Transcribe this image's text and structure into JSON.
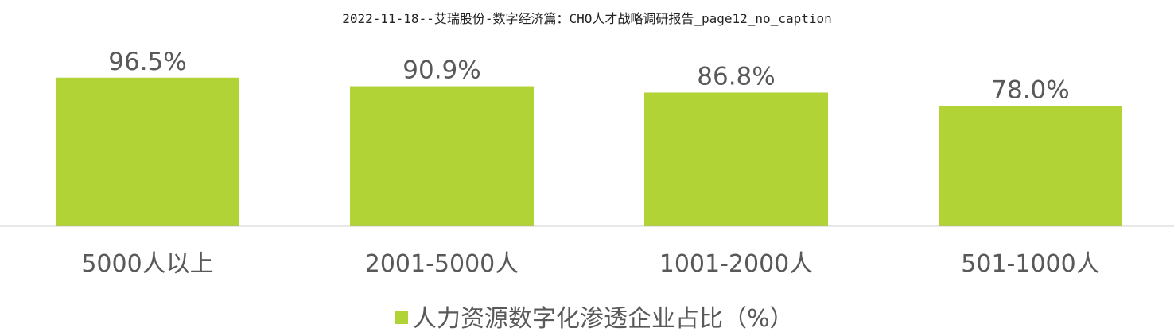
{
  "header": {
    "title": "2022-11-18--艾瑞股份-数字经济篇：CHO人才战略调研报告_page12_no_caption"
  },
  "colors": {
    "bar": "#b1d335",
    "axis": "#a6a6a6",
    "text": "#595959"
  },
  "chart_data": {
    "type": "bar",
    "title": "",
    "xlabel": "",
    "ylabel": "",
    "ylim": [
      0,
      100
    ],
    "categories": [
      "5000人以上",
      "2001-5000人",
      "1001-2000人",
      "501-1000人"
    ],
    "series": [
      {
        "name": "人力资源数字化渗透企业占比（%）",
        "values": [
          96.5,
          90.9,
          86.8,
          78.0
        ],
        "labels": [
          "96.5%",
          "90.9%",
          "86.8%",
          "78.0%"
        ]
      }
    ],
    "grid": false,
    "legend": "bottom"
  }
}
